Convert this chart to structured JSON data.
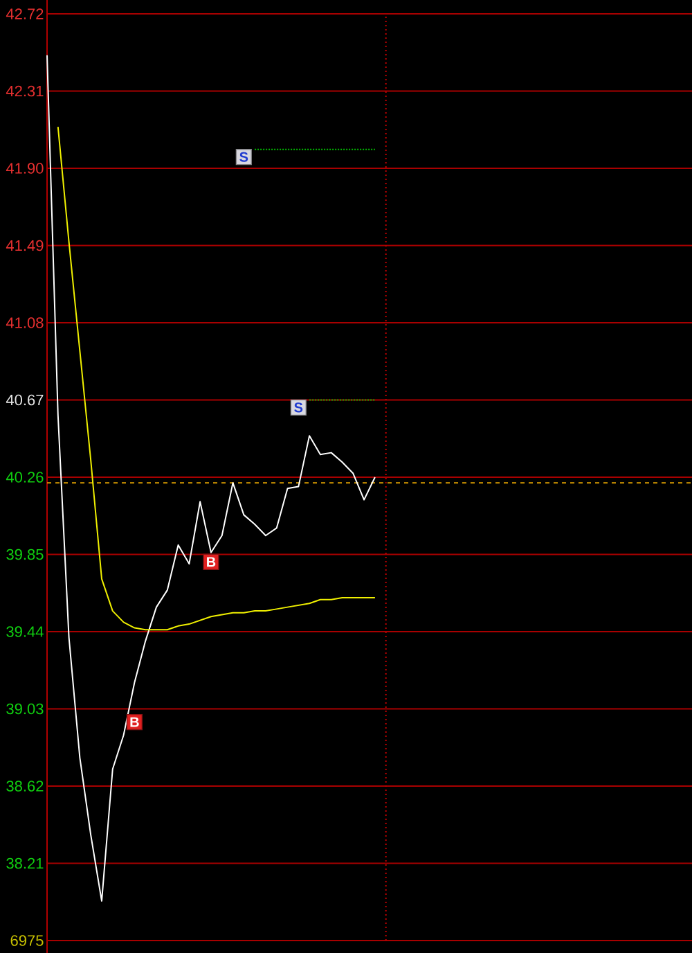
{
  "chart_data": {
    "type": "line",
    "categories": [
      null,
      null,
      null,
      null,
      null,
      null,
      null,
      null,
      null,
      null,
      null,
      null,
      null,
      null,
      null,
      null,
      null,
      null,
      null,
      null,
      null,
      null,
      null,
      null,
      null,
      null,
      null,
      null,
      null,
      null,
      null,
      null,
      null,
      null,
      null,
      null,
      null,
      null,
      null,
      null,
      null,
      null,
      null,
      null,
      null,
      null,
      null,
      null,
      null,
      null,
      null,
      null,
      null,
      null,
      null,
      null,
      null,
      null,
      null,
      null
    ],
    "ylim": [
      37.8,
      42.72
    ],
    "yticks": [
      42.72,
      42.31,
      {
        "value": 41.9,
        "label": "41.90"
      },
      41.49,
      41.08,
      40.67,
      40.26,
      39.85,
      39.44,
      39.03,
      38.62,
      38.21,
      {
        "value": 37.8,
        "label": null
      }
    ],
    "tick_labels": "y",
    "grid": "y",
    "annotations": [
      "6975"
    ],
    "ref_lines": [
      {
        "axis": "y",
        "value": 40.23,
        "color": "#e0a000",
        "line_style": "dashed"
      }
    ],
    "series": [
      {
        "color": "#ffffff",
        "values": [
          42.5,
          40.59,
          39.41,
          38.77,
          38.36,
          38.01,
          38.71,
          38.89,
          39.17,
          39.39,
          39.57,
          39.66,
          39.9,
          39.8,
          40.13,
          39.86,
          39.95,
          40.23,
          40.06,
          40.01,
          39.95,
          39.99,
          40.2,
          40.21,
          40.48,
          40.38,
          40.39,
          40.34,
          40.28,
          40.14,
          40.26,
          null,
          null,
          null,
          null,
          null,
          null,
          null,
          null,
          null,
          null,
          null,
          null,
          null,
          null,
          null,
          null,
          null,
          null,
          null,
          null,
          null,
          null,
          null,
          null,
          null,
          null,
          null,
          null,
          null
        ]
      },
      {
        "color": "#f0f000",
        "values": [
          null,
          42.12,
          41.51,
          40.93,
          40.35,
          39.72,
          39.55,
          39.49,
          39.46,
          39.45,
          39.45,
          39.45,
          39.47,
          39.48,
          39.5,
          39.52,
          39.53,
          39.54,
          39.54,
          39.55,
          39.55,
          39.56,
          39.57,
          39.58,
          39.59,
          39.61,
          39.61,
          39.62,
          39.62,
          39.62,
          39.62,
          null,
          null,
          null,
          null,
          null,
          null,
          null,
          null,
          null,
          null,
          null,
          null,
          null,
          null,
          null,
          null,
          null,
          null,
          null,
          null,
          null,
          null,
          null,
          null,
          null,
          null,
          null,
          null,
          null
        ]
      },
      {
        "color": "#00c000",
        "line_style": "dotted",
        "values": [
          null,
          null,
          null,
          null,
          null,
          null,
          null,
          null,
          null,
          null,
          null,
          null,
          null,
          null,
          null,
          null,
          null,
          null,
          null,
          42.0,
          42.0,
          42.0,
          42.0,
          42.0,
          42.0,
          42.0,
          42.0,
          42.0,
          42.0,
          42.0,
          42.0,
          null,
          null,
          null,
          null,
          null,
          null,
          null,
          null,
          null,
          null,
          null,
          null,
          null,
          null,
          null,
          null,
          null,
          null,
          null,
          null,
          null,
          null,
          null,
          null,
          null,
          null,
          null,
          null,
          null
        ]
      },
      {
        "color": "#00c000",
        "line_style": "dotted",
        "values": [
          null,
          null,
          null,
          null,
          null,
          null,
          null,
          null,
          null,
          null,
          null,
          null,
          null,
          null,
          null,
          null,
          null,
          null,
          null,
          null,
          null,
          null,
          null,
          null,
          40.67,
          40.67,
          40.67,
          40.67,
          40.67,
          40.67,
          40.67,
          null,
          null,
          null,
          null,
          null,
          null,
          null,
          null,
          null,
          null,
          null,
          null,
          null,
          null,
          null,
          null,
          null,
          null,
          null,
          null,
          null,
          null,
          null,
          null,
          null,
          null,
          null,
          null,
          null
        ]
      },
      {
        "type": "scatter",
        "color": "#e02020",
        "marker": "square",
        "values": [
          null,
          null,
          null,
          null,
          null,
          null,
          null,
          null,
          38.96,
          null,
          null,
          null,
          null,
          null,
          null,
          39.81,
          null,
          null,
          null,
          null,
          null,
          null,
          null,
          null,
          null,
          null,
          null,
          null,
          null,
          null,
          null,
          null,
          null,
          null,
          null,
          null,
          null,
          null,
          null,
          null,
          null,
          null,
          null,
          null,
          null,
          null,
          null,
          null,
          null,
          null,
          null,
          null,
          null,
          null,
          null,
          null,
          null,
          null,
          null,
          null
        ],
        "value_labels": [
          null,
          null,
          null,
          null,
          null,
          null,
          null,
          null,
          "B",
          null,
          null,
          null,
          null,
          null,
          null,
          "B",
          null,
          null,
          null,
          null,
          null,
          null,
          null,
          null,
          null,
          null,
          null,
          null,
          null,
          null,
          null,
          null,
          null,
          null,
          null,
          null,
          null,
          null,
          null,
          null,
          null,
          null,
          null,
          null,
          null,
          null,
          null,
          null,
          null,
          null,
          null,
          null,
          null,
          null,
          null,
          null,
          null,
          null,
          null,
          null
        ]
      },
      {
        "type": "scatter",
        "color": "#d8d8e0",
        "marker": "square",
        "values": [
          null,
          null,
          null,
          null,
          null,
          null,
          null,
          null,
          null,
          null,
          null,
          null,
          null,
          null,
          null,
          null,
          null,
          null,
          41.96,
          null,
          null,
          null,
          null,
          40.63,
          null,
          null,
          null,
          null,
          null,
          null,
          null,
          null,
          null,
          null,
          null,
          null,
          null,
          null,
          null,
          null,
          null,
          null,
          null,
          null,
          null,
          null,
          null,
          null,
          null,
          null,
          null,
          null,
          null,
          null,
          null,
          null,
          null,
          null,
          null,
          null
        ],
        "value_labels": [
          null,
          null,
          null,
          null,
          null,
          null,
          null,
          null,
          null,
          null,
          null,
          null,
          null,
          null,
          null,
          null,
          null,
          null,
          "S",
          null,
          null,
          null,
          null,
          "S",
          null,
          null,
          null,
          null,
          null,
          null,
          null,
          null,
          null,
          null,
          null,
          null,
          null,
          null,
          null,
          null,
          null,
          null,
          null,
          null,
          null,
          null,
          null,
          null,
          null,
          null,
          null,
          null,
          null,
          null,
          null,
          null,
          null,
          null,
          null,
          null
        ]
      }
    ]
  }
}
